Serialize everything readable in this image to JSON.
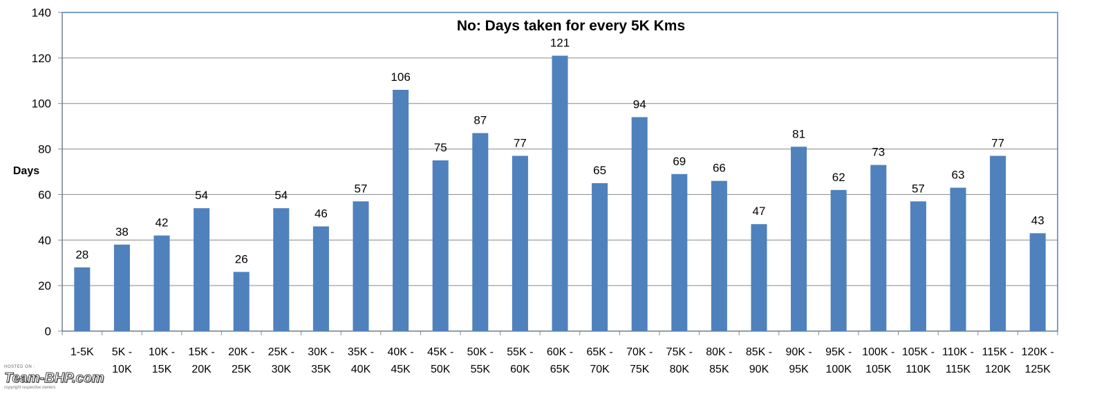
{
  "chart_data": {
    "type": "bar",
    "title": "No: Days taken for every 5K Kms",
    "ylabel": "Days",
    "xlabel": "",
    "ylim": [
      0,
      140
    ],
    "yticks": [
      0,
      20,
      40,
      60,
      80,
      100,
      120,
      140
    ],
    "grid": true,
    "bar_color": "#4f81bd",
    "categories": [
      "1-5K",
      "5K - 10K",
      "10K - 15K",
      "15K - 20K",
      "20K - 25K",
      "25K - 30K",
      "30K - 35K",
      "35K - 40K",
      "40K - 45K",
      "45K - 50K",
      "50K - 55K",
      "55K - 60K",
      "60K - 65K",
      "65K - 70K",
      "70K - 75K",
      "75K - 80K",
      "80K - 85K",
      "85K - 90K",
      "90K - 95K",
      "95K - 100K",
      "100K - 105K",
      "105K - 110K",
      "110K - 115K",
      "115K - 120K",
      "120K - 125K"
    ],
    "values": [
      28,
      38,
      42,
      54,
      26,
      54,
      46,
      57,
      106,
      75,
      87,
      77,
      121,
      65,
      94,
      69,
      66,
      47,
      81,
      62,
      73,
      57,
      63,
      77,
      43
    ]
  },
  "watermark": {
    "hosted_on": "HOSTED ON :",
    "brand": "Team-BHP.com",
    "copyright": "copyright respective owners"
  }
}
